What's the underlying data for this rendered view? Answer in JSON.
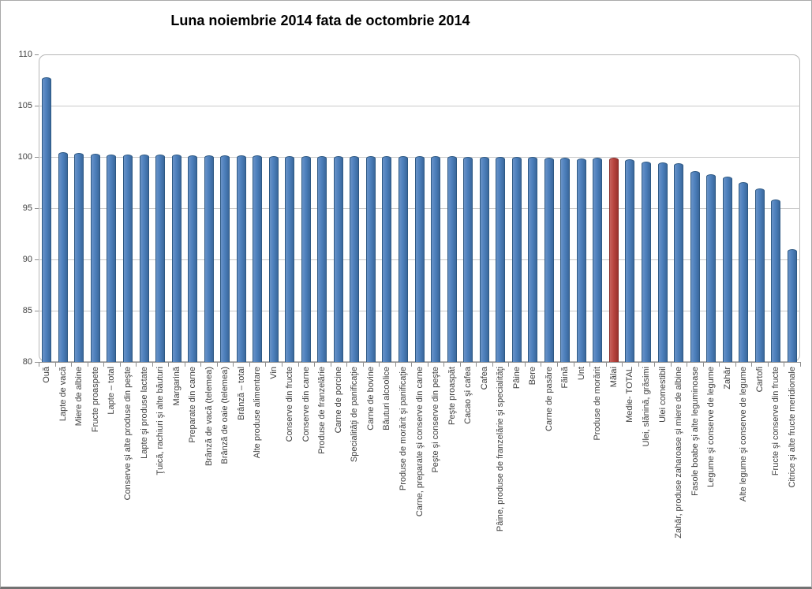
{
  "chart_data": {
    "type": "bar",
    "title": "Luna noiembrie 2014 fata de octombrie 2014",
    "xlabel": "",
    "ylabel": "",
    "ylim": [
      80,
      110
    ],
    "y_ticks": [
      80,
      85,
      90,
      95,
      100,
      105,
      110
    ],
    "grid": true,
    "legend": "none",
    "bar_color": "#4d80bd",
    "highlight_color": "#b9453f",
    "highlight_category": "Mălai",
    "categories": [
      "Ouă",
      "Lapte de vacă",
      "Miere de albine",
      "Fructe proaspete",
      "Lapte – total",
      "Conserve şi alte produse din peşte",
      "Lapte şi produse lactate",
      "Ţuică, rachiuri şi alte băuturi",
      "Margarină",
      "Preparate din carne",
      "Brânză de vacă (telemea)",
      "Brânză de oaie (telemea)",
      "Brânză – total",
      "Alte produse alimentare",
      "Vin",
      "Conserve din fructe",
      "Conserve din carne",
      "Produse de franzelărie",
      "Carne de porcine",
      "Specialităţi de panificaţie",
      "Carne de bovine",
      "Băuturi alcoolice",
      "Produse de morărit şi panificaţie",
      "Carne, preparate şi conserve din carne",
      "Peşte şi conserve din peşte",
      "Peşte proaspăt",
      "Cacao şi cafea",
      "Cafea",
      "Pâine, produse de franzelărie şi specialităţi",
      "Pâine",
      "Bere",
      "Carne de pasăre",
      "Făină",
      "Unt",
      "Produse de morărit",
      "Mălai",
      "Medie- TOTAL",
      "Ulei, slănină, grăsimi",
      "Ulei comestibil",
      "Zahăr, produse zaharoase şi miere de albine",
      "Fasole boabe şi alte leguminoase",
      "Legume şi conserve de legume",
      "Zahăr",
      "Alte legume şi conserve de legume",
      "Cartofi",
      "Fructe şi conserve din fructe",
      "Citrice şi alte fructe meridionale"
    ],
    "values": [
      107.8,
      100.5,
      100.4,
      100.35,
      100.25,
      100.2,
      100.2,
      100.2,
      100.2,
      100.15,
      100.15,
      100.15,
      100.15,
      100.15,
      100.1,
      100.1,
      100.1,
      100.1,
      100.1,
      100.1,
      100.1,
      100.05,
      100.05,
      100.05,
      100.05,
      100.05,
      100.0,
      100.0,
      100.0,
      100.0,
      100.0,
      99.95,
      99.9,
      99.85,
      99.9,
      99.9,
      99.75,
      99.55,
      99.45,
      99.4,
      98.65,
      98.3,
      98.05,
      97.55,
      96.9,
      95.85,
      91.0
    ]
  }
}
